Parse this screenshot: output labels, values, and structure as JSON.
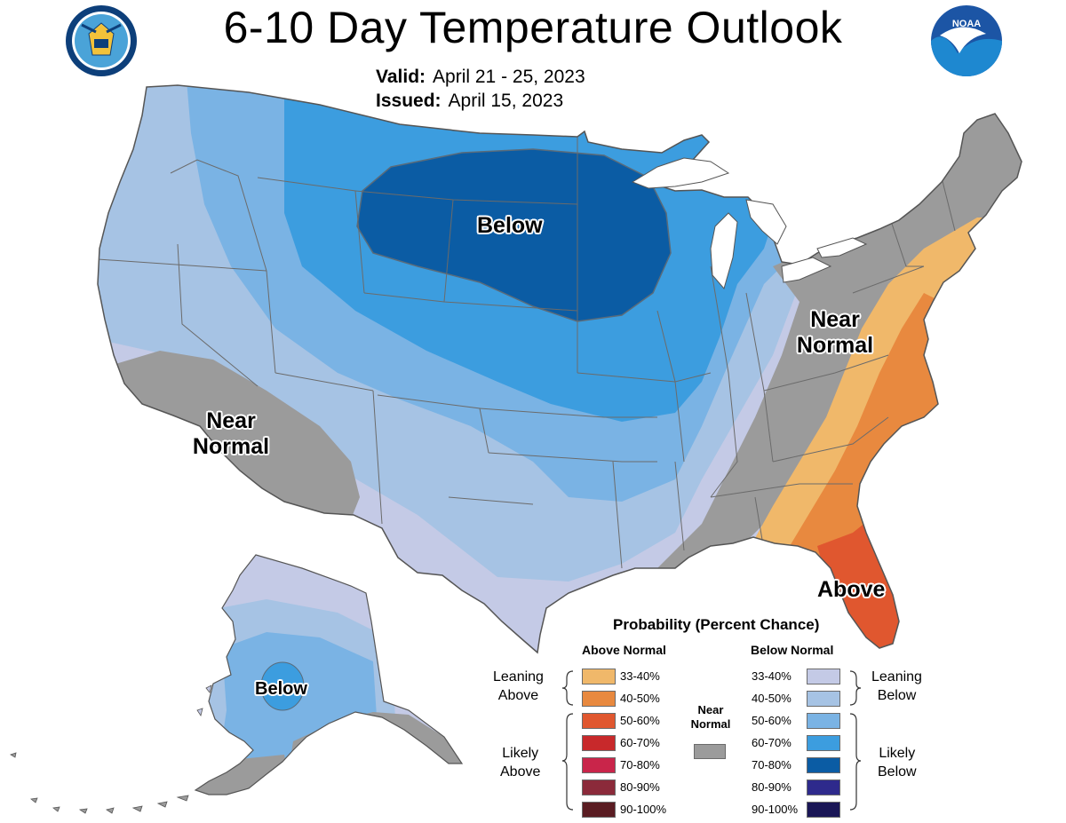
{
  "header": {
    "title": "6-10 Day Temperature Outlook",
    "valid_label": "Valid:",
    "valid_value": "April 21 - 25, 2023",
    "issued_label": "Issued:",
    "issued_value": "April 15, 2023"
  },
  "logos": {
    "left": "department-of-commerce-seal",
    "right": "noaa-logo",
    "noaa_text": "NOAA"
  },
  "map_labels": {
    "below_main": "Below",
    "near_normal_west": [
      "Near",
      "Normal"
    ],
    "near_normal_east": [
      "Near",
      "Normal"
    ],
    "above": "Above",
    "below_alaska": "Below"
  },
  "colors": {
    "above_33_40": "#f0b86a",
    "above_40_50": "#e8893f",
    "above_50_60": "#e0572f",
    "above_60_70": "#c8292b",
    "above_70_80": "#c9254a",
    "above_80_90": "#8b2a3a",
    "above_90_100": "#5a1c22",
    "below_33_40": "#c4cae6",
    "below_40_50": "#a6c3e4",
    "below_50_60": "#7ab3e4",
    "below_60_70": "#3c9ddf",
    "below_70_80": "#0b5ca4",
    "below_80_90": "#2e2a8c",
    "below_90_100": "#1a1656",
    "near_normal": "#9b9b9b",
    "state_lines": "#6b6b6b"
  },
  "legend": {
    "title": "Probability (Percent Chance)",
    "above_header": "Above Normal",
    "below_header": "Below Normal",
    "above_ranges": [
      "33-40%",
      "40-50%",
      "50-60%",
      "60-70%",
      "70-80%",
      "80-90%",
      "90-100%"
    ],
    "below_ranges": [
      "33-40%",
      "40-50%",
      "50-60%",
      "60-70%",
      "70-80%",
      "80-90%",
      "90-100%"
    ],
    "leaning_above": [
      "Leaning",
      "Above"
    ],
    "likely_above": [
      "Likely",
      "Above"
    ],
    "leaning_below": [
      "Leaning",
      "Below"
    ],
    "likely_below": [
      "Likely",
      "Below"
    ],
    "near_normal": [
      "Near",
      "Normal"
    ]
  }
}
